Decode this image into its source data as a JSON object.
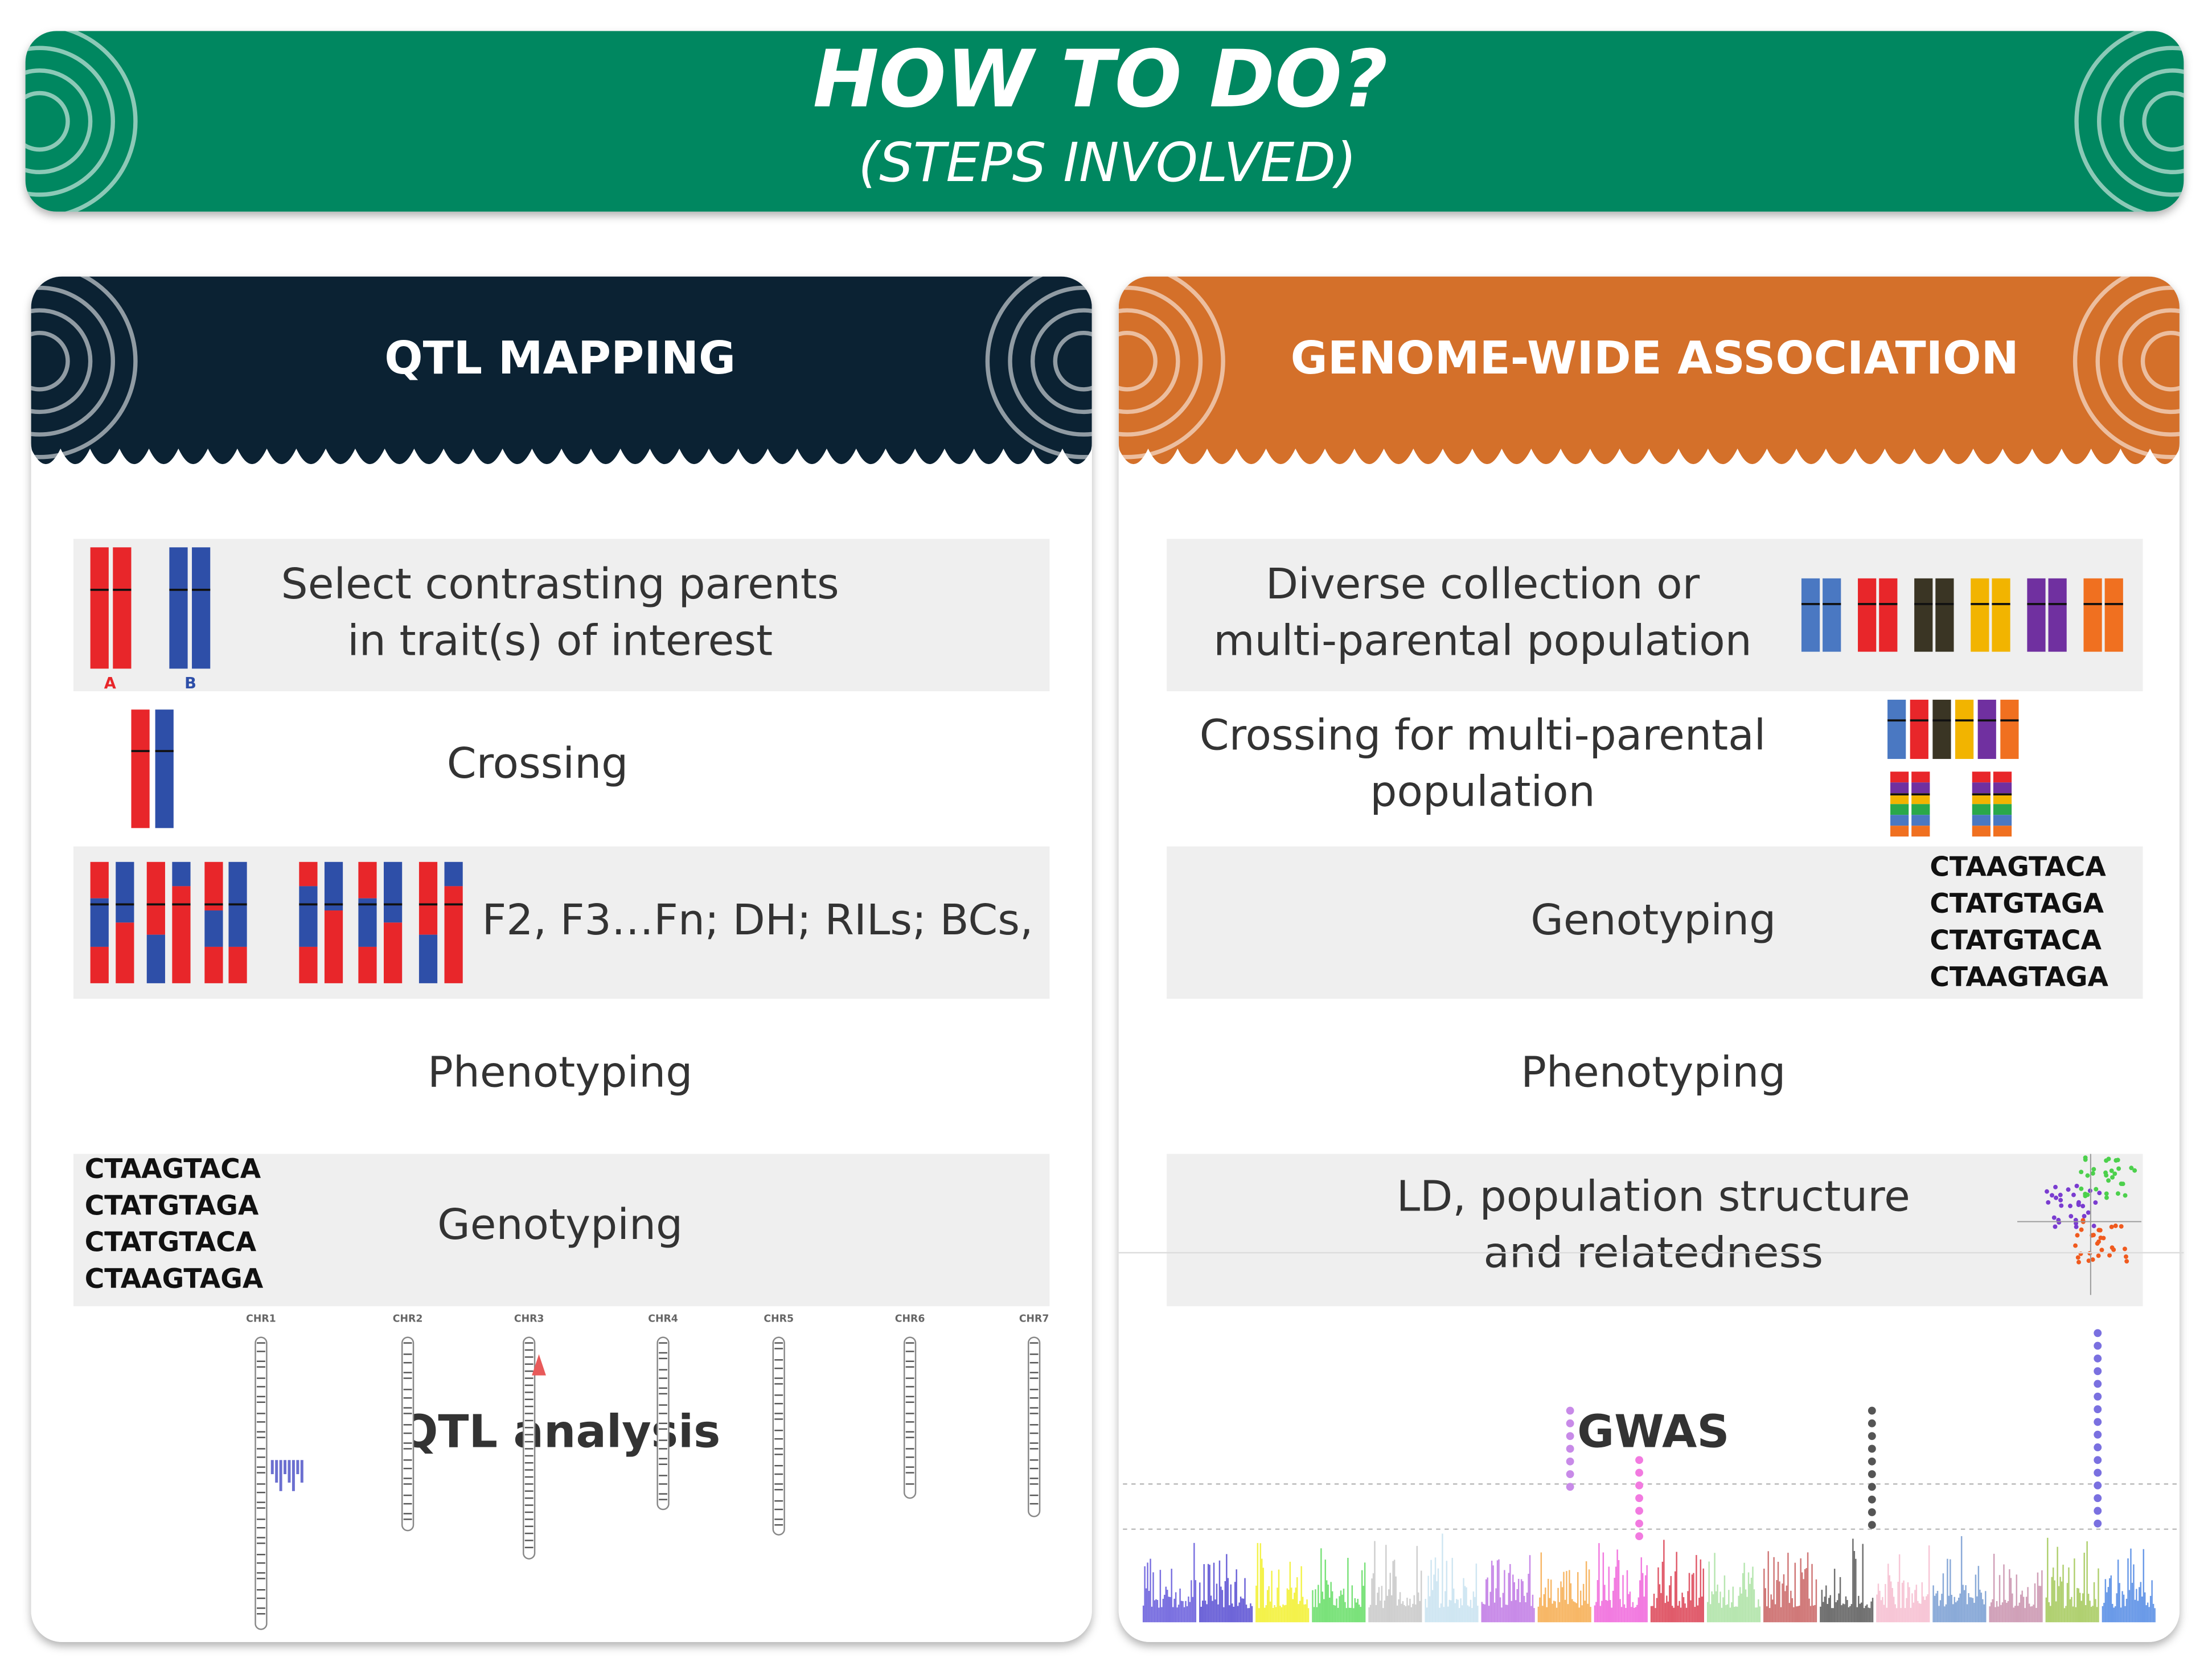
{
  "header": {
    "title": "HOW TO DO?",
    "subtitle": "(STEPS INVOLVED)"
  },
  "panels": [
    {
      "title": "QTL MAPPING",
      "steps": [
        [
          "Select contrasting parents",
          "in trait(s) of interest"
        ],
        [
          "Crossing"
        ],
        [
          "F2, F3…Fn; DH; RILs; BCs,"
        ],
        [
          "Phenotyping"
        ],
        [
          "Genotyping"
        ],
        [
          "QTL analysis"
        ]
      ],
      "parent_labels": [
        "A",
        "B"
      ],
      "sequences": [
        "CTAAGTACA",
        "CTATGTAGA",
        "CTATGTACA",
        "CTAAGTAGA"
      ],
      "chromosomes": [
        "CHR1",
        "CHR2",
        "CHR3",
        "CHR4",
        "CHR5",
        "CHR6",
        "CHR7"
      ]
    },
    {
      "title": "GENOME-WIDE ASSOCIATION",
      "steps": [
        [
          "Diverse collection or",
          "multi-parental population"
        ],
        [
          "Crossing for multi-parental",
          "population"
        ],
        [
          "Genotyping"
        ],
        [
          "Phenotyping"
        ],
        [
          "LD, population structure",
          "and relatedness"
        ],
        [
          "GWAS"
        ]
      ],
      "sequences": [
        "CTAAGTACA",
        "CTATGTAGA",
        "CTATGTACA",
        "CTAAGTAGA"
      ]
    }
  ]
}
